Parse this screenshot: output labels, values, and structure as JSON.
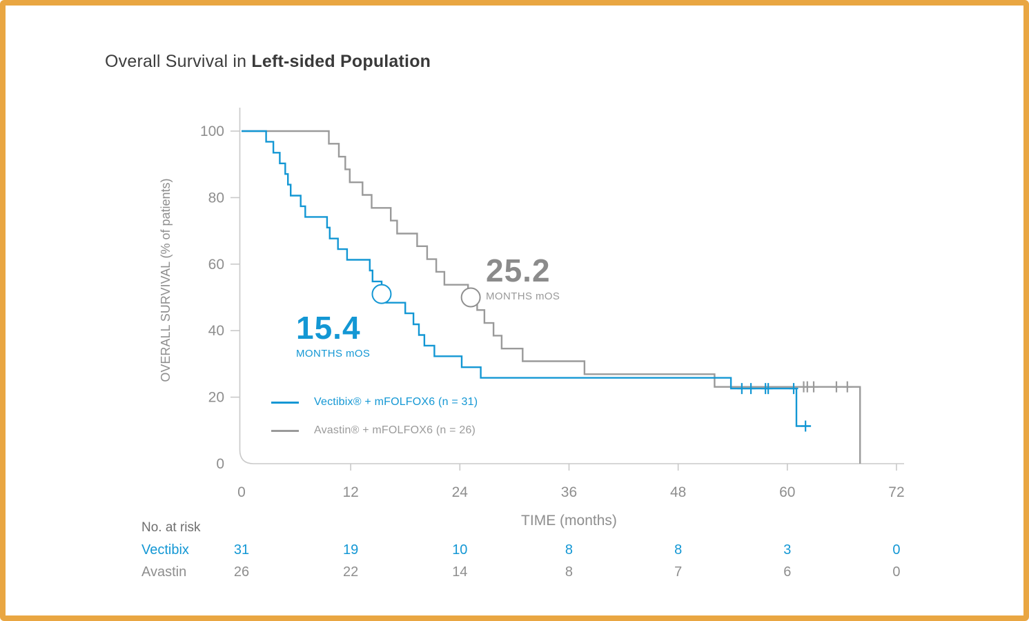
{
  "title": {
    "prefix": "Overall Survival in ",
    "emphasis": "Left-sided Population"
  },
  "colors": {
    "vectibix_blue": "#1397D4",
    "avastin_gray": "#9A9A9A",
    "axis_line": "#C9C9C9",
    "tick_text": "#8E8E8E",
    "title_text": "#3D3D3D",
    "frame_border": "#E9A642"
  },
  "chart_data": {
    "type": "line",
    "subtype": "kaplan-meier-step",
    "title": "Overall Survival in Left-sided Population",
    "xlabel": "TIME (months)",
    "ylabel": "OVERALL SURVIVAL (% of patients)",
    "xlim": [
      0,
      72
    ],
    "ylim": [
      0,
      100
    ],
    "xticks": [
      0,
      12,
      24,
      36,
      48,
      60,
      72
    ],
    "yticks": [
      0,
      20,
      40,
      60,
      80,
      100
    ],
    "grid": false,
    "legend_position": "inside-lower-left",
    "series": [
      {
        "name": "Vectibix® + mFOLFOX6 (n = 31)",
        "short_name": "Vectibix",
        "color": "#1397D4",
        "median_label": {
          "value": "15.4",
          "caption": "MONTHS mOS"
        },
        "median_marker": [
          15.4,
          51
        ],
        "points": [
          [
            0,
            100
          ],
          [
            2.7,
            96.8
          ],
          [
            3.5,
            93.5
          ],
          [
            4.2,
            90.3
          ],
          [
            4.8,
            87.1
          ],
          [
            5.1,
            83.9
          ],
          [
            5.4,
            80.6
          ],
          [
            6.5,
            77.4
          ],
          [
            7.0,
            74.2
          ],
          [
            9.4,
            71.0
          ],
          [
            9.7,
            67.7
          ],
          [
            10.6,
            64.5
          ],
          [
            11.6,
            61.3
          ],
          [
            14.1,
            58.1
          ],
          [
            14.4,
            54.8
          ],
          [
            15.4,
            51.6
          ],
          [
            15.9,
            48.4
          ],
          [
            18.0,
            45.2
          ],
          [
            18.9,
            41.9
          ],
          [
            19.5,
            38.7
          ],
          [
            20.1,
            35.5
          ],
          [
            21.2,
            32.3
          ],
          [
            24.2,
            29.0
          ],
          [
            26.3,
            25.8
          ],
          [
            53.8,
            22.6
          ],
          [
            61.0,
            11.3
          ]
        ],
        "end_time": 62.6,
        "censors": [
          [
            55.0,
            22.6
          ],
          [
            56.0,
            22.6
          ],
          [
            57.6,
            22.6
          ],
          [
            57.9,
            22.6
          ],
          [
            60.7,
            22.6
          ],
          [
            62.0,
            11.3
          ]
        ]
      },
      {
        "name": "Avastin® + mFOLFOX6 (n = 26)",
        "short_name": "Avastin",
        "color": "#9A9A9A",
        "median_label": {
          "value": "25.2",
          "caption": "MONTHS mOS"
        },
        "median_marker": [
          25.2,
          50
        ],
        "points": [
          [
            0,
            100
          ],
          [
            9.6,
            96.2
          ],
          [
            10.7,
            92.3
          ],
          [
            11.4,
            88.5
          ],
          [
            11.9,
            84.6
          ],
          [
            13.3,
            80.8
          ],
          [
            14.3,
            76.9
          ],
          [
            16.4,
            73.1
          ],
          [
            17.1,
            69.2
          ],
          [
            19.3,
            65.4
          ],
          [
            20.4,
            61.5
          ],
          [
            21.4,
            57.7
          ],
          [
            22.3,
            53.8
          ],
          [
            24.9,
            50.0
          ],
          [
            25.9,
            46.2
          ],
          [
            26.7,
            42.3
          ],
          [
            27.7,
            38.5
          ],
          [
            28.6,
            34.6
          ],
          [
            30.9,
            30.8
          ],
          [
            37.7,
            26.9
          ],
          [
            52.0,
            23.1
          ],
          [
            68.0,
            0
          ]
        ],
        "end_time": 68.0,
        "censors": [
          [
            61.8,
            23.1
          ],
          [
            62.2,
            23.1
          ],
          [
            62.9,
            23.1
          ],
          [
            65.4,
            23.1
          ],
          [
            66.6,
            23.1
          ]
        ]
      }
    ],
    "risk_table": {
      "label": "No. at risk",
      "times": [
        0,
        12,
        24,
        36,
        48,
        60,
        72
      ],
      "rows": [
        {
          "name": "Vectibix",
          "color": "#1397D4",
          "values": [
            31,
            19,
            10,
            8,
            8,
            3,
            0
          ]
        },
        {
          "name": "Avastin",
          "color": "#8E8E8E",
          "values": [
            26,
            22,
            14,
            8,
            7,
            6,
            0
          ]
        }
      ]
    }
  }
}
